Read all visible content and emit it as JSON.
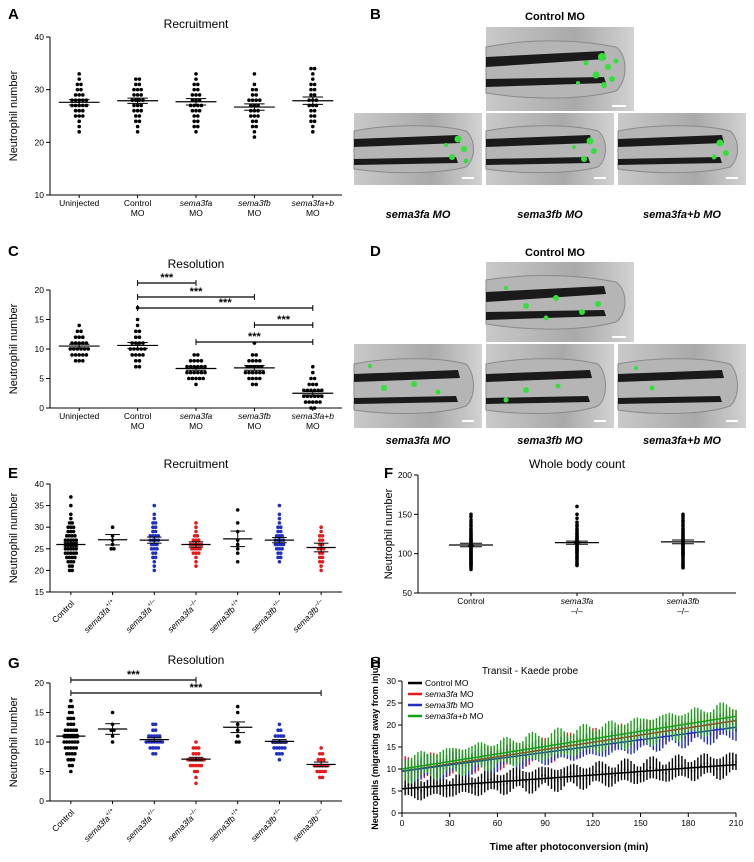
{
  "figure": {
    "panel_letters": [
      "A",
      "B",
      "C",
      "D",
      "E",
      "F",
      "G",
      "H"
    ]
  },
  "panel_b": {
    "top_label": "Control MO",
    "labels": [
      "sema3fa MO",
      "sema3fb MO",
      "sema3fa+b MO"
    ]
  },
  "panel_d": {
    "top_label": "Control MO",
    "labels": [
      "sema3fa MO",
      "sema3fb MO",
      "sema3fa+b MO"
    ]
  },
  "colors": {
    "black": "#000000",
    "red": "#e8191b",
    "blue": "#1f2fc4",
    "green": "#16a016"
  },
  "chart_data": [
    {
      "panel": "A",
      "type": "scatter",
      "title": "Recruitment",
      "ylabel": "Neutrophil number",
      "xlabel": "",
      "ylim": [
        10,
        40
      ],
      "yticks": [
        10,
        20,
        30,
        40
      ],
      "categories": [
        "Uninjected",
        "Control MO",
        "sema3fa MO",
        "sema3fb MO",
        "sema3fa+b MO"
      ],
      "means": [
        27.6,
        27.9,
        27.7,
        26.7,
        27.9
      ],
      "sem": [
        0.5,
        0.5,
        0.6,
        0.6,
        0.7
      ],
      "values": [
        [
          33,
          32,
          31,
          31,
          30,
          30,
          29,
          29,
          29,
          28,
          28,
          28,
          28,
          28,
          27,
          27,
          27,
          27,
          27,
          26,
          26,
          26,
          25,
          25,
          25,
          24,
          23,
          22
        ],
        [
          32,
          32,
          31,
          31,
          30,
          30,
          30,
          29,
          29,
          29,
          28,
          28,
          28,
          28,
          27,
          27,
          27,
          26,
          26,
          26,
          25,
          25,
          24,
          24,
          23,
          22
        ],
        [
          33,
          32,
          31,
          31,
          30,
          30,
          29,
          29,
          29,
          28,
          28,
          28,
          27,
          27,
          27,
          27,
          26,
          26,
          26,
          25,
          25,
          24,
          24,
          23,
          23,
          22
        ],
        [
          33,
          31,
          30,
          30,
          29,
          29,
          28,
          28,
          28,
          28,
          27,
          27,
          27,
          26,
          26,
          26,
          25,
          25,
          25,
          24,
          24,
          23,
          23,
          22,
          21
        ],
        [
          34,
          34,
          33,
          32,
          31,
          31,
          30,
          30,
          29,
          29,
          28,
          28,
          28,
          27,
          27,
          27,
          26,
          26,
          25,
          25,
          24,
          24,
          23,
          22
        ]
      ]
    },
    {
      "panel": "C",
      "type": "scatter",
      "title": "Resolution",
      "ylabel": "Neutrophil number",
      "xlabel": "",
      "ylim": [
        0,
        20
      ],
      "yticks": [
        0,
        5,
        10,
        15,
        20
      ],
      "categories": [
        "Uninjected",
        "Control MO",
        "sema3fa MO",
        "sema3fb MO",
        "sema3fa+b MO"
      ],
      "means": [
        10.5,
        10.6,
        6.7,
        6.8,
        2.5
      ],
      "sem": [
        0.3,
        0.5,
        0.3,
        0.4,
        0.3
      ],
      "significance": [
        {
          "from": 1,
          "to": 2,
          "label": "***"
        },
        {
          "from": 1,
          "to": 3,
          "label": "***"
        },
        {
          "from": 1,
          "to": 4,
          "label": "***"
        },
        {
          "from": 3,
          "to": 4,
          "label": "***"
        },
        {
          "from": 2,
          "to": 4,
          "label": "***"
        }
      ],
      "values": [
        [
          14,
          13,
          13,
          12,
          12,
          12,
          11,
          11,
          11,
          11,
          11,
          10,
          10,
          10,
          10,
          10,
          10,
          9,
          9,
          9,
          9,
          9,
          8,
          8,
          8
        ],
        [
          17,
          15,
          14,
          13,
          13,
          12,
          12,
          11,
          11,
          11,
          11,
          10,
          10,
          10,
          10,
          10,
          9,
          9,
          9,
          9,
          8,
          8,
          7,
          7
        ],
        [
          9,
          9,
          8,
          8,
          8,
          8,
          7,
          7,
          7,
          7,
          7,
          7,
          6,
          6,
          6,
          6,
          6,
          6,
          5,
          5,
          5,
          5,
          5,
          4
        ],
        [
          11,
          9,
          9,
          8,
          8,
          8,
          8,
          7,
          7,
          7,
          7,
          7,
          6,
          6,
          6,
          6,
          6,
          6,
          5,
          5,
          5,
          5,
          4,
          4
        ],
        [
          7,
          6,
          5,
          5,
          4,
          4,
          4,
          3,
          3,
          3,
          3,
          3,
          3,
          2,
          2,
          2,
          2,
          2,
          2,
          1,
          1,
          1,
          1,
          1,
          0,
          0
        ]
      ]
    },
    {
      "panel": "E",
      "type": "scatter",
      "title": "Recruitment",
      "ylabel": "Neutrophil number",
      "xlabel": "",
      "ylim": [
        15,
        40
      ],
      "yticks": [
        15,
        20,
        25,
        30,
        35,
        40
      ],
      "categories": [
        "Control",
        "sema3fa+/+",
        "sema3fa+/–",
        "sema3fa–/–",
        "sema3fb+/+",
        "sema3fb+/–",
        "sema3fb–/–"
      ],
      "colors": [
        "black",
        "black",
        "blue",
        "red",
        "black",
        "blue",
        "red"
      ],
      "means": [
        26.0,
        27.1,
        27.0,
        26.0,
        27.3,
        27.0,
        25.3
      ],
      "sem": [
        0.5,
        1.2,
        0.7,
        0.6,
        1.8,
        0.6,
        1.0
      ],
      "values": [
        [
          37,
          35,
          33,
          32,
          31,
          31,
          30,
          30,
          30,
          29,
          29,
          29,
          28,
          28,
          28,
          28,
          27,
          27,
          27,
          27,
          27,
          26,
          26,
          26,
          26,
          26,
          25,
          25,
          25,
          25,
          25,
          24,
          24,
          24,
          24,
          24,
          23,
          23,
          23,
          23,
          22,
          22,
          22,
          21,
          21,
          20,
          20
        ],
        [
          30,
          28,
          27,
          26,
          25,
          25
        ],
        [
          35,
          33,
          32,
          31,
          31,
          30,
          30,
          29,
          29,
          28,
          28,
          28,
          28,
          27,
          27,
          27,
          27,
          26,
          26,
          26,
          25,
          25,
          25,
          24,
          24,
          23,
          23,
          22,
          21,
          20
        ],
        [
          31,
          30,
          29,
          28,
          28,
          27,
          27,
          27,
          26,
          26,
          26,
          26,
          26,
          25,
          25,
          25,
          25,
          24,
          24,
          24,
          23,
          22,
          21
        ],
        [
          34,
          31,
          29,
          27,
          26,
          25,
          24,
          22
        ],
        [
          35,
          33,
          32,
          31,
          30,
          30,
          29,
          29,
          28,
          28,
          28,
          27,
          27,
          27,
          27,
          26,
          26,
          26,
          26,
          25,
          25,
          25,
          24,
          24,
          23,
          23,
          22
        ],
        [
          30,
          29,
          28,
          28,
          27,
          27,
          26,
          26,
          25,
          25,
          25,
          24,
          24,
          23,
          23,
          22,
          22,
          21,
          20
        ]
      ]
    },
    {
      "panel": "F",
      "type": "scatter",
      "title": "Whole body count",
      "ylabel": "Neutrophil number",
      "xlabel": "",
      "ylim": [
        50,
        200
      ],
      "yticks": [
        50,
        100,
        150,
        200
      ],
      "categories": [
        "Control",
        "sema3fa–/–",
        "sema3fb–/–"
      ],
      "means": [
        111,
        114,
        115
      ],
      "sem": [
        2.2,
        2.0,
        2.4
      ],
      "values": [
        [
          150,
          147,
          143,
          140,
          137,
          135,
          132,
          130,
          128,
          126,
          125,
          123,
          122,
          120,
          119,
          118,
          117,
          116,
          115,
          114,
          113,
          112,
          111,
          110,
          110,
          109,
          108,
          107,
          106,
          105,
          104,
          103,
          102,
          101,
          100,
          99,
          98,
          97,
          96,
          95,
          94,
          93,
          92,
          91,
          90,
          89,
          88,
          87,
          86,
          85,
          84,
          82,
          80
        ],
        [
          160,
          150,
          145,
          140,
          137,
          135,
          132,
          130,
          128,
          126,
          125,
          124,
          122,
          121,
          120,
          119,
          118,
          117,
          116,
          115,
          114,
          114,
          113,
          112,
          111,
          110,
          109,
          108,
          107,
          106,
          105,
          104,
          103,
          102,
          101,
          100,
          98,
          96,
          95,
          94,
          92,
          90,
          88,
          86,
          85
        ],
        [
          150,
          148,
          145,
          142,
          140,
          137,
          135,
          132,
          130,
          128,
          126,
          125,
          123,
          122,
          120,
          119,
          118,
          117,
          116,
          115,
          114,
          113,
          112,
          111,
          110,
          109,
          108,
          107,
          106,
          105,
          104,
          103,
          102,
          101,
          100,
          99,
          98,
          96,
          94,
          92,
          90,
          88,
          86,
          85,
          84,
          82
        ]
      ]
    },
    {
      "panel": "G",
      "type": "scatter",
      "title": "Resolution",
      "ylabel": "Neutrophil number",
      "xlabel": "",
      "ylim": [
        0,
        20
      ],
      "yticks": [
        0,
        5,
        10,
        15,
        20
      ],
      "categories": [
        "Control",
        "sema3fa+/+",
        "sema3fa+/–",
        "sema3fa–/–",
        "sema3fb+/+",
        "sema3fb+/–",
        "sema3fb–/–"
      ],
      "colors": [
        "black",
        "black",
        "blue",
        "red",
        "black",
        "blue",
        "red"
      ],
      "means": [
        11.0,
        12.2,
        10.4,
        7.1,
        12.5,
        10.1,
        6.2
      ],
      "sem": [
        0.3,
        0.9,
        0.3,
        0.3,
        0.9,
        0.3,
        0.4
      ],
      "significance": [
        {
          "from": 0,
          "to": 3,
          "label": "***"
        },
        {
          "from": 0,
          "to": 6,
          "label": "***"
        }
      ],
      "values": [
        [
          17,
          16,
          16,
          15,
          15,
          14,
          14,
          14,
          13,
          13,
          13,
          12,
          12,
          12,
          12,
          12,
          11,
          11,
          11,
          11,
          11,
          11,
          10,
          10,
          10,
          10,
          10,
          10,
          9,
          9,
          9,
          9,
          9,
          8,
          8,
          8,
          8,
          7,
          7,
          7,
          6,
          6,
          5
        ],
        [
          15,
          13,
          12,
          12,
          11,
          10
        ],
        [
          13,
          13,
          12,
          12,
          11,
          11,
          11,
          11,
          11,
          10,
          10,
          10,
          10,
          10,
          10,
          10,
          9,
          9,
          9,
          9,
          8,
          8
        ],
        [
          10,
          9,
          9,
          9,
          8,
          8,
          8,
          7,
          7,
          7,
          7,
          7,
          7,
          7,
          6,
          6,
          6,
          6,
          6,
          5,
          5,
          4,
          3
        ],
        [
          16,
          15,
          13,
          12,
          11,
          10,
          10
        ],
        [
          13,
          12,
          12,
          11,
          11,
          11,
          11,
          10,
          10,
          10,
          10,
          10,
          10,
          9,
          9,
          9,
          9,
          9,
          8,
          8,
          8,
          7
        ],
        [
          9,
          8,
          8,
          7,
          7,
          7,
          6,
          6,
          6,
          6,
          6,
          6,
          5,
          5,
          5,
          5,
          4,
          4
        ]
      ]
    },
    {
      "panel": "H",
      "type": "line",
      "title": "Transit - Kaede probe",
      "xlabel": "Time after photoconversion (min)",
      "ylabel": "Neutrophils (migrating away from injury)",
      "xlim": [
        0,
        210
      ],
      "ylim": [
        0,
        30
      ],
      "xticks": [
        0,
        30,
        60,
        90,
        120,
        150,
        180,
        210
      ],
      "yticks": [
        0,
        5,
        10,
        15,
        20,
        25,
        30
      ],
      "legend_position": "top-left",
      "series": [
        {
          "name": "Control MO",
          "color": "black",
          "start": 5.5,
          "end": 11.0,
          "err": 2.5
        },
        {
          "name": "sema3fa MO",
          "color": "red",
          "start": 9.5,
          "end": 21.0,
          "err": 2.5
        },
        {
          "name": "sema3fb MO",
          "color": "blue",
          "start": 9.5,
          "end": 19.5,
          "err": 2.5
        },
        {
          "name": "sema3fa+b MO",
          "color": "green",
          "start": 10.0,
          "end": 22.0,
          "err": 3.0
        }
      ]
    }
  ]
}
